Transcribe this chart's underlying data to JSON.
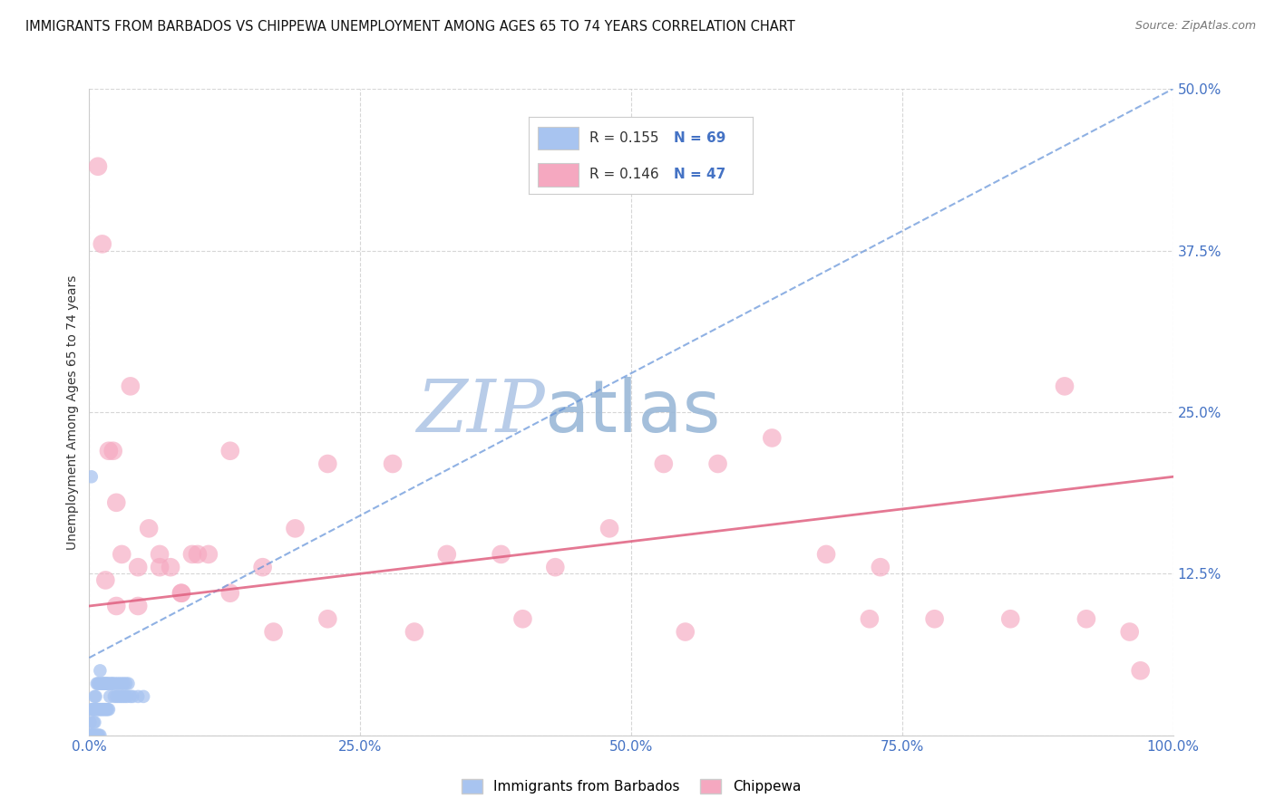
{
  "title": "IMMIGRANTS FROM BARBADOS VS CHIPPEWA UNEMPLOYMENT AMONG AGES 65 TO 74 YEARS CORRELATION CHART",
  "source": "Source: ZipAtlas.com",
  "ylabel": "Unemployment Among Ages 65 to 74 years",
  "xlim": [
    0,
    1.0
  ],
  "ylim": [
    0,
    0.5
  ],
  "xticks": [
    0.0,
    0.25,
    0.5,
    0.75,
    1.0
  ],
  "xticklabels": [
    "0.0%",
    "25.0%",
    "50.0%",
    "75.0%",
    "100.0%"
  ],
  "yticks": [
    0.0,
    0.125,
    0.25,
    0.375,
    0.5
  ],
  "yticklabels": [
    "",
    "12.5%",
    "25.0%",
    "37.5%",
    "50.0%"
  ],
  "series1_label": "Immigrants from Barbados",
  "series2_label": "Chippewa",
  "series1_color": "#a8c4f0",
  "series2_color": "#f5a8c0",
  "trendline1_color": "#6090d8",
  "trendline2_color": "#e06080",
  "watermark_zip_color": "#b8cce8",
  "watermark_atlas_color": "#9ab8d8",
  "background_color": "#ffffff",
  "title_fontsize": 10.5,
  "ylabel_fontsize": 10,
  "tick_fontsize": 11,
  "tick_color": "#4472c4",
  "legend_r1": "R = 0.155",
  "legend_n1": "N = 69",
  "legend_r2": "R = 0.146",
  "legend_n2": "N = 47",
  "series1_x": [
    0.001,
    0.001,
    0.002,
    0.002,
    0.002,
    0.003,
    0.003,
    0.003,
    0.004,
    0.004,
    0.004,
    0.005,
    0.005,
    0.005,
    0.005,
    0.006,
    0.006,
    0.006,
    0.007,
    0.007,
    0.007,
    0.008,
    0.008,
    0.008,
    0.009,
    0.009,
    0.009,
    0.01,
    0.01,
    0.01,
    0.011,
    0.011,
    0.012,
    0.012,
    0.013,
    0.013,
    0.014,
    0.014,
    0.015,
    0.015,
    0.016,
    0.016,
    0.017,
    0.017,
    0.018,
    0.018,
    0.019,
    0.02,
    0.021,
    0.022,
    0.023,
    0.024,
    0.025,
    0.026,
    0.027,
    0.028,
    0.029,
    0.03,
    0.031,
    0.032,
    0.033,
    0.034,
    0.035,
    0.036,
    0.038,
    0.04,
    0.045,
    0.05,
    0.002
  ],
  "series1_y": [
    0.0,
    0.01,
    0.0,
    0.02,
    0.0,
    0.0,
    0.02,
    0.0,
    0.01,
    0.02,
    0.0,
    0.02,
    0.0,
    0.01,
    0.03,
    0.02,
    0.0,
    0.03,
    0.0,
    0.02,
    0.04,
    0.0,
    0.02,
    0.04,
    0.0,
    0.02,
    0.04,
    0.0,
    0.02,
    0.05,
    0.02,
    0.04,
    0.02,
    0.04,
    0.02,
    0.04,
    0.02,
    0.04,
    0.02,
    0.04,
    0.02,
    0.04,
    0.02,
    0.04,
    0.02,
    0.04,
    0.03,
    0.04,
    0.04,
    0.04,
    0.03,
    0.04,
    0.03,
    0.04,
    0.03,
    0.04,
    0.03,
    0.04,
    0.03,
    0.04,
    0.03,
    0.04,
    0.03,
    0.04,
    0.03,
    0.03,
    0.03,
    0.03,
    0.2
  ],
  "series2_x": [
    0.008,
    0.012,
    0.018,
    0.022,
    0.025,
    0.03,
    0.038,
    0.045,
    0.055,
    0.065,
    0.075,
    0.085,
    0.095,
    0.11,
    0.13,
    0.16,
    0.19,
    0.22,
    0.28,
    0.33,
    0.38,
    0.43,
    0.48,
    0.53,
    0.58,
    0.63,
    0.68,
    0.73,
    0.78,
    0.85,
    0.92,
    0.96,
    0.015,
    0.025,
    0.045,
    0.065,
    0.085,
    0.1,
    0.13,
    0.17,
    0.22,
    0.3,
    0.4,
    0.55,
    0.72,
    0.9,
    0.97
  ],
  "series2_y": [
    0.44,
    0.38,
    0.22,
    0.22,
    0.18,
    0.14,
    0.27,
    0.13,
    0.16,
    0.14,
    0.13,
    0.11,
    0.14,
    0.14,
    0.22,
    0.13,
    0.16,
    0.21,
    0.21,
    0.14,
    0.14,
    0.13,
    0.16,
    0.21,
    0.21,
    0.23,
    0.14,
    0.13,
    0.09,
    0.09,
    0.09,
    0.08,
    0.12,
    0.1,
    0.1,
    0.13,
    0.11,
    0.14,
    0.11,
    0.08,
    0.09,
    0.08,
    0.09,
    0.08,
    0.09,
    0.27,
    0.05
  ],
  "trendline1_x": [
    0.0,
    1.0
  ],
  "trendline1_y": [
    0.06,
    0.5
  ],
  "trendline2_x": [
    0.0,
    1.0
  ],
  "trendline2_y": [
    0.1,
    0.2
  ]
}
